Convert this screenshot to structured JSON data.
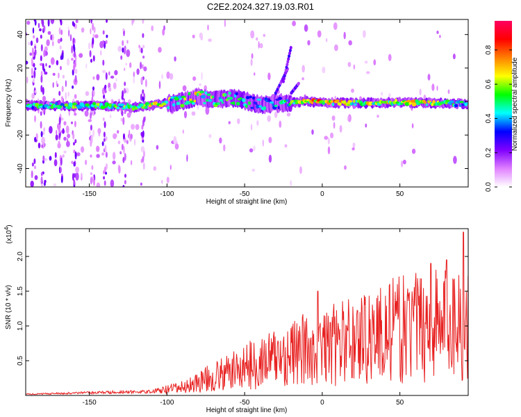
{
  "title": "C2E2.2024.327.19.03.R01",
  "chart_data": [
    {
      "type": "heatmap",
      "xlabel": "Height of straight line (km)",
      "ylabel": "Frequency (Hz)",
      "xlim": [
        -191,
        94
      ],
      "ylim": [
        -51,
        49
      ],
      "xticks": [
        -150,
        -100,
        -50,
        0,
        50
      ],
      "xtick_labels": [
        "-150",
        "-100",
        "-50",
        "0",
        "50"
      ],
      "yticks": [
        40,
        20,
        0,
        -20,
        -40
      ],
      "ytick_labels": [
        "40",
        "20",
        "0",
        "-20",
        "-40"
      ],
      "colorbar": {
        "label": "Normalized spectral amplitude",
        "range": [
          0,
          0.97
        ],
        "ticks": [
          0.0,
          0.2,
          0.4,
          0.6,
          0.8
        ],
        "tick_labels": [
          "0.0",
          "0.2",
          "0.4",
          "0.6",
          "0.8"
        ],
        "colors": [
          "#ffffff",
          "#e080ff",
          "#8000ff",
          "#0000ff",
          "#00ffff",
          "#00ff00",
          "#ffff00",
          "#ff8000",
          "#ff0000",
          "#ff0060"
        ]
      },
      "ridge": [
        {
          "x": -190,
          "f": -2.5,
          "a": 0.55
        },
        {
          "x": -170,
          "f": -2.5,
          "a": 0.6
        },
        {
          "x": -150,
          "f": -2.5,
          "a": 0.6
        },
        {
          "x": -130,
          "f": -2.8,
          "a": 0.6
        },
        {
          "x": -120,
          "f": -3.5,
          "a": 0.75
        },
        {
          "x": -105,
          "f": -1.5,
          "a": 0.7
        },
        {
          "x": -95,
          "f": -1,
          "a": 0.6
        },
        {
          "x": -80,
          "f": 3,
          "a": 0.7
        },
        {
          "x": -70,
          "f": 1,
          "a": 0.6
        },
        {
          "x": -55,
          "f": 2,
          "a": 0.55
        },
        {
          "x": -40,
          "f": -2,
          "a": 0.45
        },
        {
          "x": -28,
          "f": -1,
          "a": 0.5
        },
        {
          "x": -10,
          "f": 0,
          "a": 0.75
        },
        {
          "x": 0,
          "f": -0.5,
          "a": 0.85
        },
        {
          "x": 20,
          "f": -1,
          "a": 0.7
        },
        {
          "x": 50,
          "f": -0.5,
          "a": 0.7
        },
        {
          "x": 60,
          "f": -0.7,
          "a": 0.75
        },
        {
          "x": 80,
          "f": -1,
          "a": 0.6
        },
        {
          "x": 94,
          "f": -1.5,
          "a": 0.5
        }
      ],
      "branches": [
        {
          "x_start": -30,
          "x_end": -22,
          "f_start": 5,
          "f_end": 20
        },
        {
          "x_start": -25,
          "x_end": -20,
          "f_start": 12,
          "f_end": 33
        },
        {
          "x_start": -20,
          "x_end": -15,
          "f_start": 5,
          "f_end": 11
        }
      ]
    },
    {
      "type": "line",
      "xlabel": "Height of straight line (km)",
      "ylabel": "SNR (10 * v/v)",
      "y_multiplier": "(x10",
      "y_multiplier_exp": "4",
      "y_multiplier_close": ")",
      "xlim": [
        -191,
        94
      ],
      "ylim": [
        0,
        2.4
      ],
      "xticks": [
        -150,
        -100,
        -50,
        0,
        50
      ],
      "xtick_labels": [
        "-150",
        "-100",
        "-50",
        "0",
        "50"
      ],
      "yticks": [
        0.5,
        1.0,
        1.5,
        2.0
      ],
      "ytick_labels": [
        "0.5",
        "1.0",
        "1.5",
        "2.0"
      ],
      "color": "#e82020",
      "envelope_knots": [
        {
          "x": -191,
          "y": 0.02
        },
        {
          "x": -140,
          "y": 0.05
        },
        {
          "x": -110,
          "y": 0.06
        },
        {
          "x": -90,
          "y": 0.14
        },
        {
          "x": -75,
          "y": 0.28
        },
        {
          "x": -60,
          "y": 0.4
        },
        {
          "x": -50,
          "y": 0.5
        },
        {
          "x": -35,
          "y": 0.62
        },
        {
          "x": -20,
          "y": 0.72
        },
        {
          "x": -10,
          "y": 0.8
        },
        {
          "x": 0,
          "y": 0.82
        },
        {
          "x": 10,
          "y": 0.9
        },
        {
          "x": 30,
          "y": 1.05
        },
        {
          "x": 50,
          "y": 1.15
        },
        {
          "x": 70,
          "y": 1.25
        },
        {
          "x": 85,
          "y": 1.3
        },
        {
          "x": 94,
          "y": 1.25
        }
      ],
      "peaks": [
        {
          "x": -3,
          "y": 1.5
        },
        {
          "x": 5,
          "y": 1.05
        },
        {
          "x": 70,
          "y": 1.9
        },
        {
          "x": 80,
          "y": 1.95
        },
        {
          "x": 91,
          "y": 2.35
        }
      ]
    }
  ]
}
